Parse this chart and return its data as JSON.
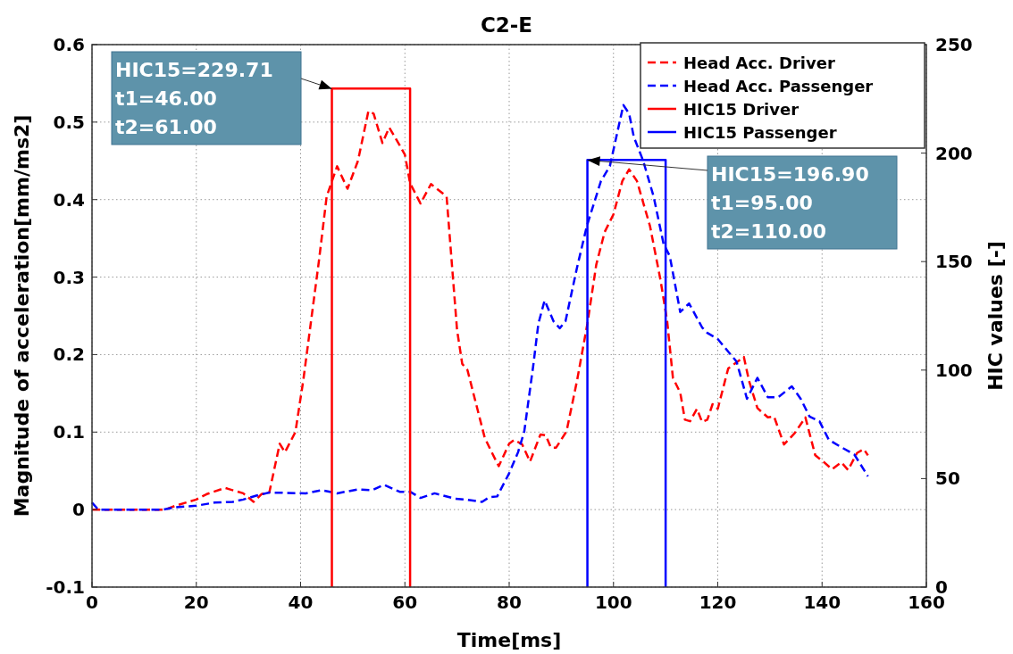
{
  "chart_data": {
    "type": "line",
    "title": "C2-E",
    "xlabel": "Time[ms]",
    "ylabel": "Magnitude of acceleration[mm/ms2]",
    "y2label": "HIC values [-]",
    "xlim": [
      0,
      160
    ],
    "xticks": [
      0,
      20,
      40,
      60,
      80,
      100,
      120,
      140,
      160
    ],
    "ylim": [
      -0.1,
      0.6
    ],
    "yticks": [
      -0.1,
      0,
      0.1,
      0.2,
      0.3,
      0.4,
      0.5,
      0.6
    ],
    "y2lim": [
      0,
      250
    ],
    "y2ticks": [
      0,
      50,
      100,
      150,
      200,
      250
    ],
    "grid": true,
    "legend": "top right",
    "marker": "none",
    "annotations": [
      {
        "text": "HIC15=229.71\nt1=46.00\nt2=61.00",
        "x": 46,
        "y": 0.543
      },
      {
        "text": "HIC15=196.90\nt1=95.00\nt2=110.00",
        "x": 95,
        "y": 0.451
      }
    ],
    "series": [
      {
        "name": "Head Acc. Driver",
        "color": "#ff0000",
        "line_style": "dashed",
        "x": [
          0,
          14,
          16,
          20,
          22,
          25.5,
          29,
          31,
          32.5,
          34,
          36,
          37,
          39,
          40.5,
          42,
          43.5,
          45,
          47,
          49,
          51,
          53,
          54,
          55.7,
          57,
          59,
          60,
          61,
          63,
          65,
          68,
          70,
          71,
          72,
          75.3,
          76.5,
          78,
          80,
          81,
          82.5,
          84,
          86,
          87,
          88,
          89,
          91,
          93,
          95,
          96.7,
          98.3,
          100,
          101.7,
          103,
          104.5,
          107,
          109,
          110.3,
          111.4,
          112.8,
          113.7,
          114.7,
          116,
          117,
          118,
          119,
          120,
          122,
          125,
          126,
          127.6,
          129.6,
          130.8,
          132.7,
          134.8,
          136.8,
          138.7,
          140.4,
          141.9,
          143.7,
          145,
          146.7,
          148,
          148.8
        ],
        "values": [
          0,
          0,
          0.005,
          0.013,
          0.02,
          0.028,
          0.021,
          0.01,
          0.02,
          0.022,
          0.085,
          0.074,
          0.1,
          0.166,
          0.243,
          0.32,
          0.404,
          0.443,
          0.414,
          0.45,
          0.514,
          0.511,
          0.473,
          0.493,
          0.47,
          0.458,
          0.421,
          0.395,
          0.42,
          0.404,
          0.232,
          0.188,
          0.18,
          0.093,
          0.076,
          0.056,
          0.085,
          0.09,
          0.084,
          0.062,
          0.097,
          0.096,
          0.08,
          0.08,
          0.101,
          0.166,
          0.24,
          0.316,
          0.358,
          0.381,
          0.424,
          0.439,
          0.424,
          0.366,
          0.297,
          0.243,
          0.17,
          0.151,
          0.116,
          0.114,
          0.13,
          0.113,
          0.116,
          0.136,
          0.13,
          0.182,
          0.197,
          0.166,
          0.131,
          0.119,
          0.12,
          0.084,
          0.099,
          0.119,
          0.07,
          0.061,
          0.052,
          0.061,
          0.051,
          0.073,
          0.078,
          0.07
        ]
      },
      {
        "name": "Head Acc. Passenger",
        "color": "#0000ff",
        "line_style": "dashed",
        "x": [
          0,
          1.2,
          13.7,
          16,
          20,
          23.5,
          27,
          29,
          31.5,
          34,
          41,
          44,
          47,
          51,
          53.7,
          56,
          59,
          61,
          63,
          65.7,
          69.7,
          71.7,
          74.8,
          76.2,
          77.7,
          80,
          81.7,
          82.9,
          84.6,
          85.6,
          86.8,
          88.5,
          89.7,
          90.8,
          93,
          94.9,
          97.6,
          99.3,
          101.9,
          103,
          103.9,
          105.7,
          107.7,
          109.6,
          110.8,
          112.8,
          114.5,
          117,
          118,
          120,
          123.6,
          125.6,
          127.6,
          129.6,
          131.6,
          134.2,
          135.9,
          137.6,
          139.5,
          141.3,
          143.3,
          146.2,
          148.8
        ],
        "values": [
          0.009,
          0,
          0,
          0.003,
          0.005,
          0.009,
          0.01,
          0.013,
          0.018,
          0.022,
          0.021,
          0.025,
          0.021,
          0.026,
          0.025,
          0.032,
          0.023,
          0.023,
          0.015,
          0.021,
          0.014,
          0.013,
          0.01,
          0.016,
          0.017,
          0.047,
          0.074,
          0.101,
          0.185,
          0.24,
          0.27,
          0.243,
          0.234,
          0.243,
          0.312,
          0.366,
          0.424,
          0.443,
          0.522,
          0.511,
          0.481,
          0.45,
          0.404,
          0.343,
          0.327,
          0.255,
          0.266,
          0.235,
          0.228,
          0.22,
          0.191,
          0.143,
          0.17,
          0.145,
          0.145,
          0.159,
          0.143,
          0.12,
          0.114,
          0.09,
          0.082,
          0.071,
          0.043
        ]
      },
      {
        "name": "HIC15 Driver",
        "color": "#ff0000",
        "line_style": "solid",
        "axis": "y2",
        "x": [
          46,
          46,
          61,
          61
        ],
        "values": [
          0,
          229.71,
          229.71,
          0
        ]
      },
      {
        "name": "HIC15 Passenger",
        "color": "#0000ff",
        "line_style": "solid",
        "axis": "y2",
        "x": [
          95,
          95,
          110,
          110
        ],
        "values": [
          0,
          196.9,
          196.9,
          0
        ]
      }
    ]
  }
}
